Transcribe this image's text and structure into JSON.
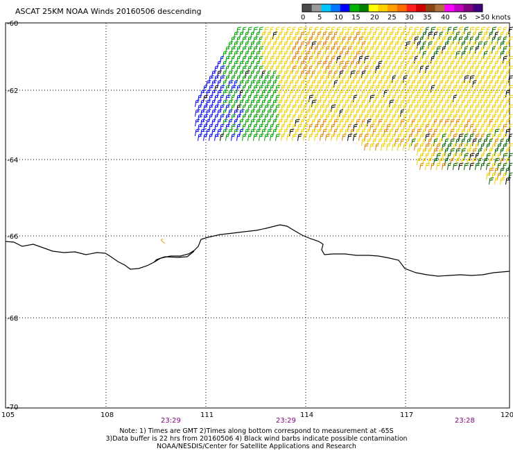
{
  "title": "ASCAT 25KM NOAA Winds 20160506 descending",
  "legend": {
    "labels": [
      "0",
      "5",
      "10",
      "15",
      "20",
      "25",
      "30",
      "35",
      "40",
      "45",
      ">50 knots"
    ],
    "colors": [
      "#4a4a4a",
      "#9a9a9a",
      "#00c8ff",
      "#0078ff",
      "#0000ff",
      "#00b400",
      "#008000",
      "#ffff00",
      "#ffd000",
      "#ffa000",
      "#ff6a00",
      "#ff2020",
      "#d00000",
      "#8b4513",
      "#b07040",
      "#ff00ff",
      "#c000c0",
      "#800080",
      "#400080"
    ]
  },
  "axes": {
    "longitudes": [
      "105",
      "108",
      "111",
      "114",
      "117",
      "120"
    ],
    "latitudes": [
      "-60",
      "-62",
      "-64",
      "-66",
      "-68",
      "-70"
    ]
  },
  "times": [
    "23:29",
    "23:29",
    "23:28"
  ],
  "notes": {
    "line1": "Note: 1) Times are GMT 2)Times along bottom correspond to measurement at -65S",
    "line2": "3)Data buffer is 22 hrs from 20160506 4) Black wind barbs indicate possible contamination",
    "line3": "NOAA/NESDIS/Center for Satellite Applications and Research"
  },
  "barb_colors": {
    "blue": "#0000ff",
    "green": "#00a000",
    "dark_green": "#006400",
    "yellow": "#f0d000",
    "orange": "#e08000",
    "black": "#000000"
  }
}
